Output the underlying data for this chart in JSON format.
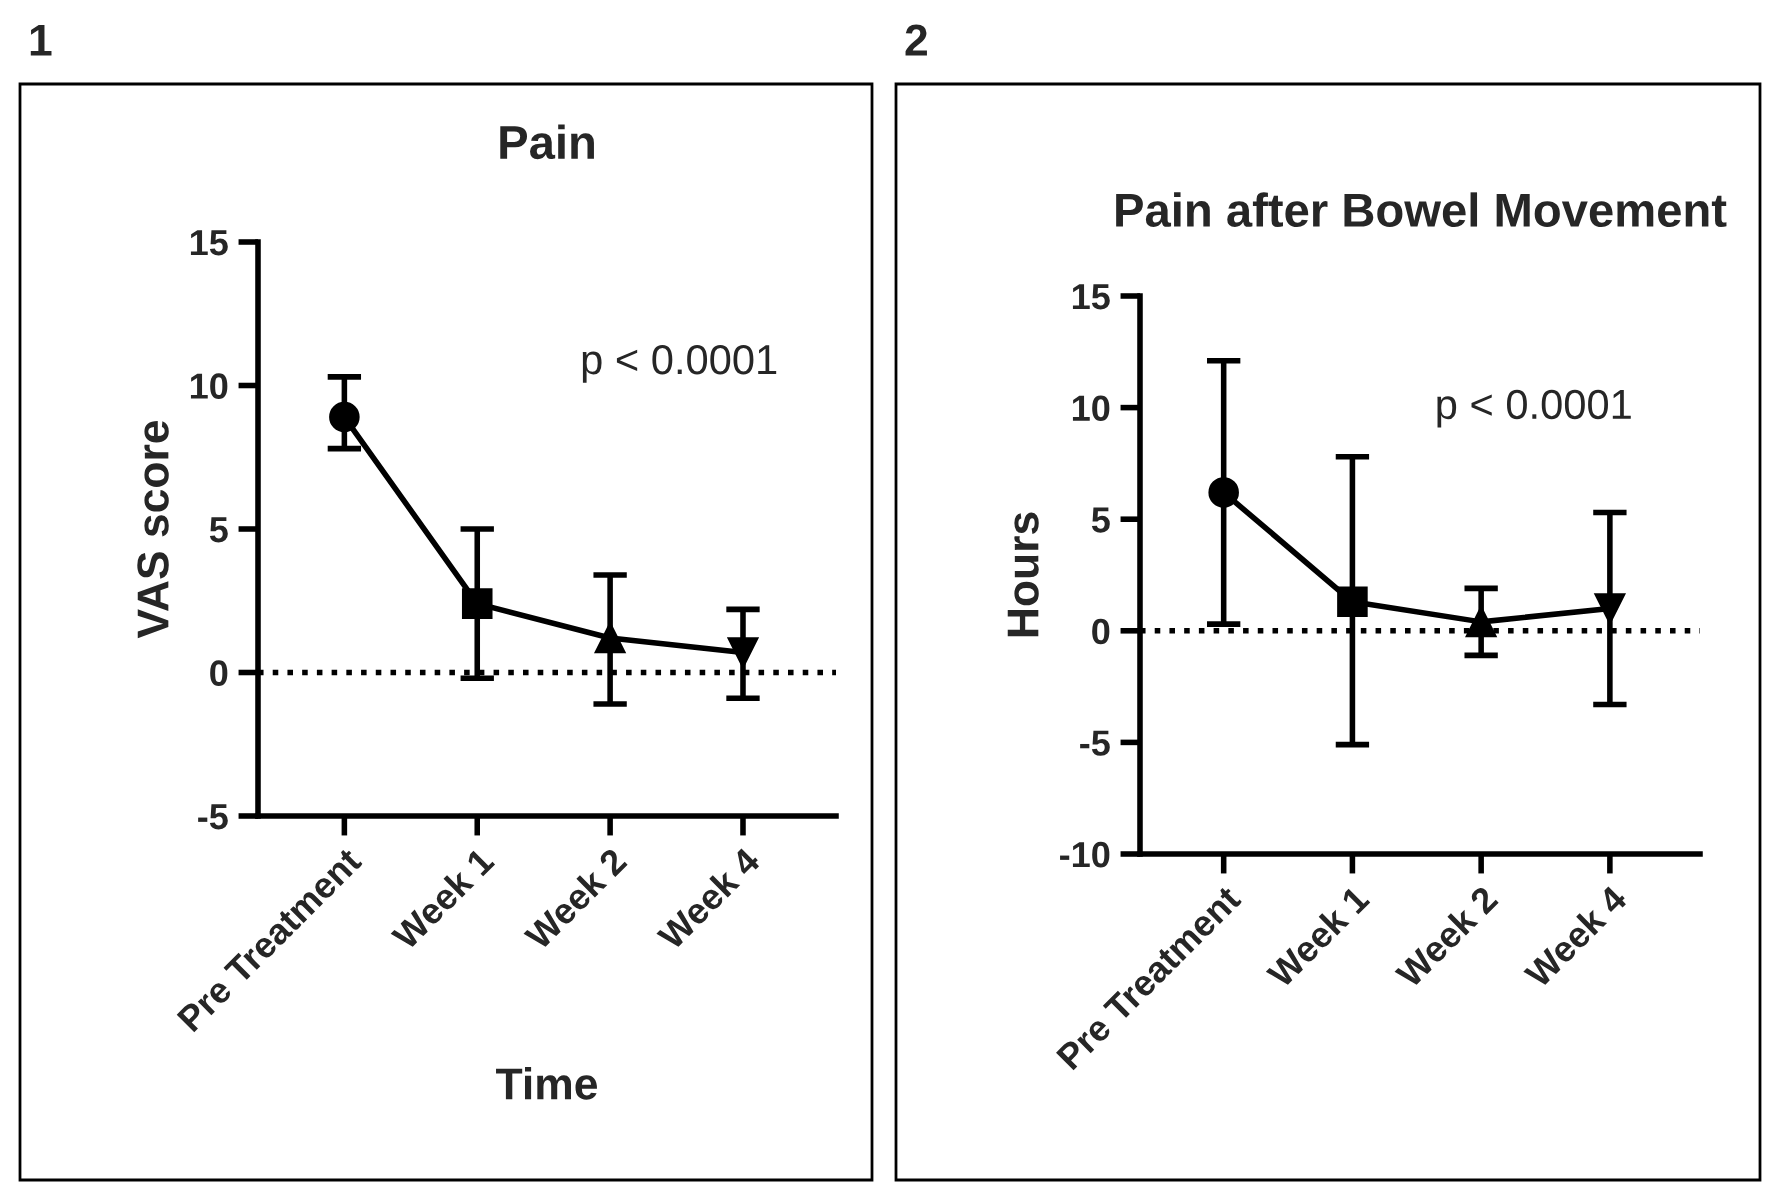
{
  "chart_data": [
    {
      "type": "line",
      "title": "Pain",
      "xlabel": "Time",
      "ylabel": "VAS score",
      "categories": [
        "Pre Treatment",
        "Week 1",
        "Week 2",
        "Week 4"
      ],
      "series": [
        {
          "color": "#000000",
          "values": [
            8.9,
            2.4,
            1.2,
            0.7
          ],
          "errors": [
            [
              7.8,
              10.3
            ],
            [
              -0.2,
              5.0
            ],
            [
              -1.1,
              3.4
            ],
            [
              -0.9,
              2.2
            ]
          ],
          "marker": [
            "circle",
            "square",
            "triangle",
            "triangle_down"
          ]
        }
      ],
      "ylim": [
        -5,
        15
      ],
      "yticks": [
        -5,
        0,
        5,
        10,
        15
      ],
      "ref_lines": [
        {
          "axis": "y",
          "value": 0,
          "line_style": "dotted",
          "color": "#000000"
        }
      ],
      "annotations": [
        "1",
        "p < 0.0001"
      ],
      "grid": false,
      "legend": false,
      "line_style": "solid"
    },
    {
      "type": "line",
      "title": "Pain after Bowel Movement",
      "ylabel": "Hours",
      "categories": [
        "Pre Treatment",
        "Week 1",
        "Week 2",
        "Week 4"
      ],
      "series": [
        {
          "color": "#000000",
          "values": [
            6.2,
            1.3,
            0.4,
            1.0
          ],
          "errors": [
            [
              0.3,
              12.1
            ],
            [
              -5.1,
              7.8
            ],
            [
              -1.1,
              1.9
            ],
            [
              -3.3,
              5.3
            ]
          ],
          "marker": [
            "circle",
            "square",
            "triangle",
            "triangle_down"
          ]
        }
      ],
      "ylim": [
        -10,
        15
      ],
      "yticks": [
        -10,
        -5,
        0,
        5,
        10,
        15
      ],
      "ref_lines": [
        {
          "axis": "y",
          "value": 0,
          "line_style": "dotted",
          "color": "#000000"
        }
      ],
      "annotations": [
        "2",
        "p < 0.0001"
      ],
      "grid": false,
      "legend": false,
      "line_style": "solid"
    }
  ]
}
